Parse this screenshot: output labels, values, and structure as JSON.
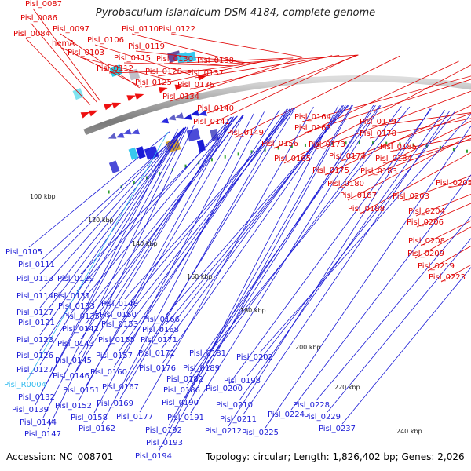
{
  "title": "Pyrobaculum islandicum DSM 4184, complete genome",
  "footer": {
    "accession": "Accession: NC_008701",
    "summary": "Topology: circular; Length: 1,826,402 bp; Genes: 2,026"
  },
  "colors": {
    "forward_label": "#e00000",
    "reverse_label": "#1a1ad6",
    "rna_label": "#33bbee",
    "backbone": "#8a8a8a",
    "tick_marks": "#2e9e2e"
  },
  "scale_labels": [
    "100 kbp",
    "120 kbp",
    "140 kbp",
    "160 kbp",
    "180 kbp",
    "200 kbp",
    "220 kbp",
    "240 kbp"
  ],
  "forward_labels": [
    "Pisl_0087",
    "Pisl_0086",
    "Pisl_0084",
    "Pisl_0097",
    "hemA",
    "Pisl_0103",
    "Pisl_0106",
    "Pisl_0110",
    "Pisl_0122",
    "Pisl_0119",
    "Pisl_0115",
    "Pisl_0112",
    "Pisl_0130",
    "Pisl_0138",
    "Pisl_0128",
    "Pisl_0137",
    "Pisl_0125",
    "Pisl_0136",
    "Pisl_0134",
    "Pisl_0140",
    "Pisl_0141",
    "Pisl_0164",
    "Pisl_0163",
    "Pisl_0179",
    "Pisl_0149",
    "Pisl_0178",
    "Pisl_0156",
    "Pisl_0173",
    "Pisl_0185",
    "Pisl_0174",
    "Pisl_0184",
    "Pisl_0165",
    "Pisl_0175",
    "Pisl_0183",
    "Pisl_0180",
    "Pisl_0205",
    "Pisl_0187",
    "Pisl_0203",
    "Pisl_0188",
    "Pisl_0204",
    "Pisl_0206",
    "Pisl_0208",
    "Pisl_0209",
    "Pisl_0219",
    "Pisl_0223"
  ],
  "reverse_labels": [
    "Pisl_0105",
    "Pisl_0111",
    "Pisl_0113",
    "Pisl_0129",
    "Pisl_0114",
    "Pisl_0131",
    "Pisl_0133",
    "Pisl_0148",
    "Pisl_0117",
    "Pisl_0135",
    "Pisl_0150",
    "Pisl_0121",
    "Pisl_0142",
    "Pisl_0153",
    "Pisl_0166",
    "Pisl_0168",
    "Pisl_0123",
    "Pisl_0143",
    "Pisl_0155",
    "Pisl_0171",
    "Pisl_0126",
    "Pisl_0145",
    "Pisl_0157",
    "Pisl_0172",
    "Pisl_0181",
    "Pisl_0202",
    "Pisl_0127",
    "Pisl_0160",
    "Pisl_0176",
    "Pisl_0189",
    "Pisl_0146",
    "Pisl_0182",
    "Pisl_0198",
    "Pisl_R0004",
    "Pisl_0151",
    "Pisl_0167",
    "Pisl_0186",
    "Pisl_0200",
    "Pisl_0132",
    "Pisl_0152",
    "Pisl_0169",
    "Pisl_0190",
    "Pisl_0210",
    "Pisl_0228",
    "Pisl_0139",
    "Pisl_0158",
    "Pisl_0177",
    "Pisl_0191",
    "Pisl_0211",
    "Pisl_0224",
    "Pisl_0229",
    "Pisl_0144",
    "Pisl_0162",
    "Pisl_0192",
    "Pisl_0212",
    "Pisl_0225",
    "Pisl_0237",
    "Pisl_0147",
    "Pisl_0193",
    "Pisl_0194"
  ]
}
